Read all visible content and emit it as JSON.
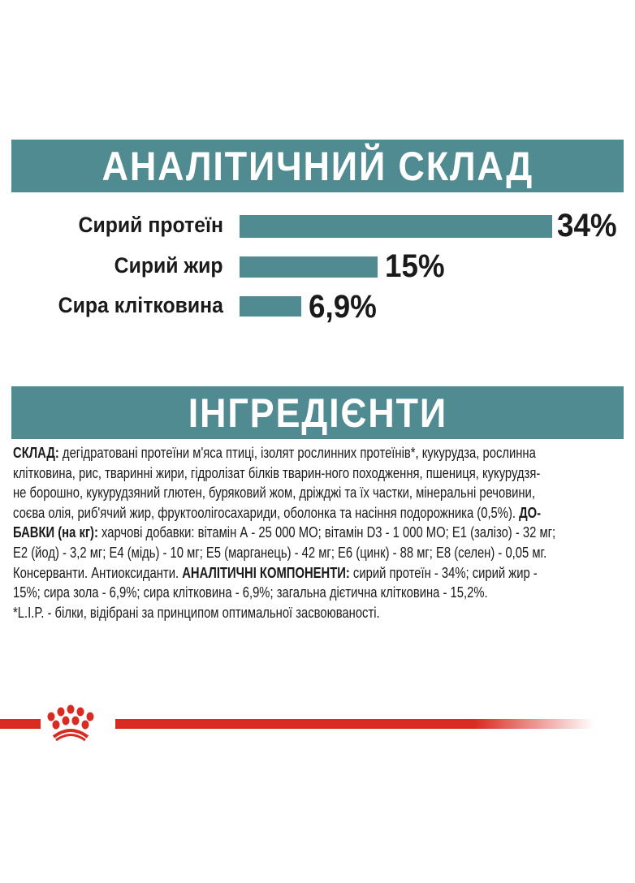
{
  "analysis": {
    "title": "АНАЛІТИЧНИЙ СКЛАД",
    "items": [
      {
        "label": "Сирий протеїн",
        "value": "34%",
        "percent": 34
      },
      {
        "label": "Сирий жир",
        "value": "15%",
        "percent": 15
      },
      {
        "label": "Сира клітковина",
        "value": "6,9%",
        "percent": 6.9
      }
    ]
  },
  "ingredients": {
    "title": "ІНГРЕДІЄНТИ",
    "lines": [
      {
        "b": "СКЛАД:",
        "t": " дегідратовані протеїни м'яса птиці, ізолят рослинних протеїнів*, кукурудза, рослинна"
      },
      {
        "t": "клітковина, рис, тваринні жири, гідролізат білків тварин-ного походження, пшениця, кукурудзя-"
      },
      {
        "t": "не борошно, кукурудзяний глютен, буряковий жом, дріжджі та їх частки, мінеральні речовини,"
      },
      {
        "t": "соєва олія, риб'ячий жир, фруктоолігосахариди, оболонка та насіння подорожника (0,5%). ",
        "b": "ДО-"
      },
      {
        "b": "БАВКИ (на кг):",
        "t": " харчові добавки: вітамін А - 25 000 МО; вітамін D3 - 1 000 МО; Е1 (залізо) - 32 мг;"
      },
      {
        "t": "Е2 (йод) - 3,2 мг; Е4 (мідь) - 10 мг; Е5 (марганець) - 42 мг; Е6 (цинк) - 88 мг; Е8 (селен) - 0,05 мг."
      },
      {
        "t": "Консерванти. Антиоксиданти. ",
        "b": "АНАЛІТИЧНІ КОМПОНЕНТИ:",
        "t2": " сирий протеїн - 34%; сирий жир -"
      },
      {
        "t": "15%; сира зола - 6,9%; сира клітковина - 6,9%; загальна дієтична клітковина - 15,2%."
      },
      {
        "t": "*L.I.P. - білки, відібрані за принципом оптимальної засвоюваності."
      }
    ]
  },
  "colors": {
    "accent": "#4f8b90",
    "brand_red": "#d92b22"
  },
  "logo": {
    "name": "royal-canin-crown-logo"
  }
}
